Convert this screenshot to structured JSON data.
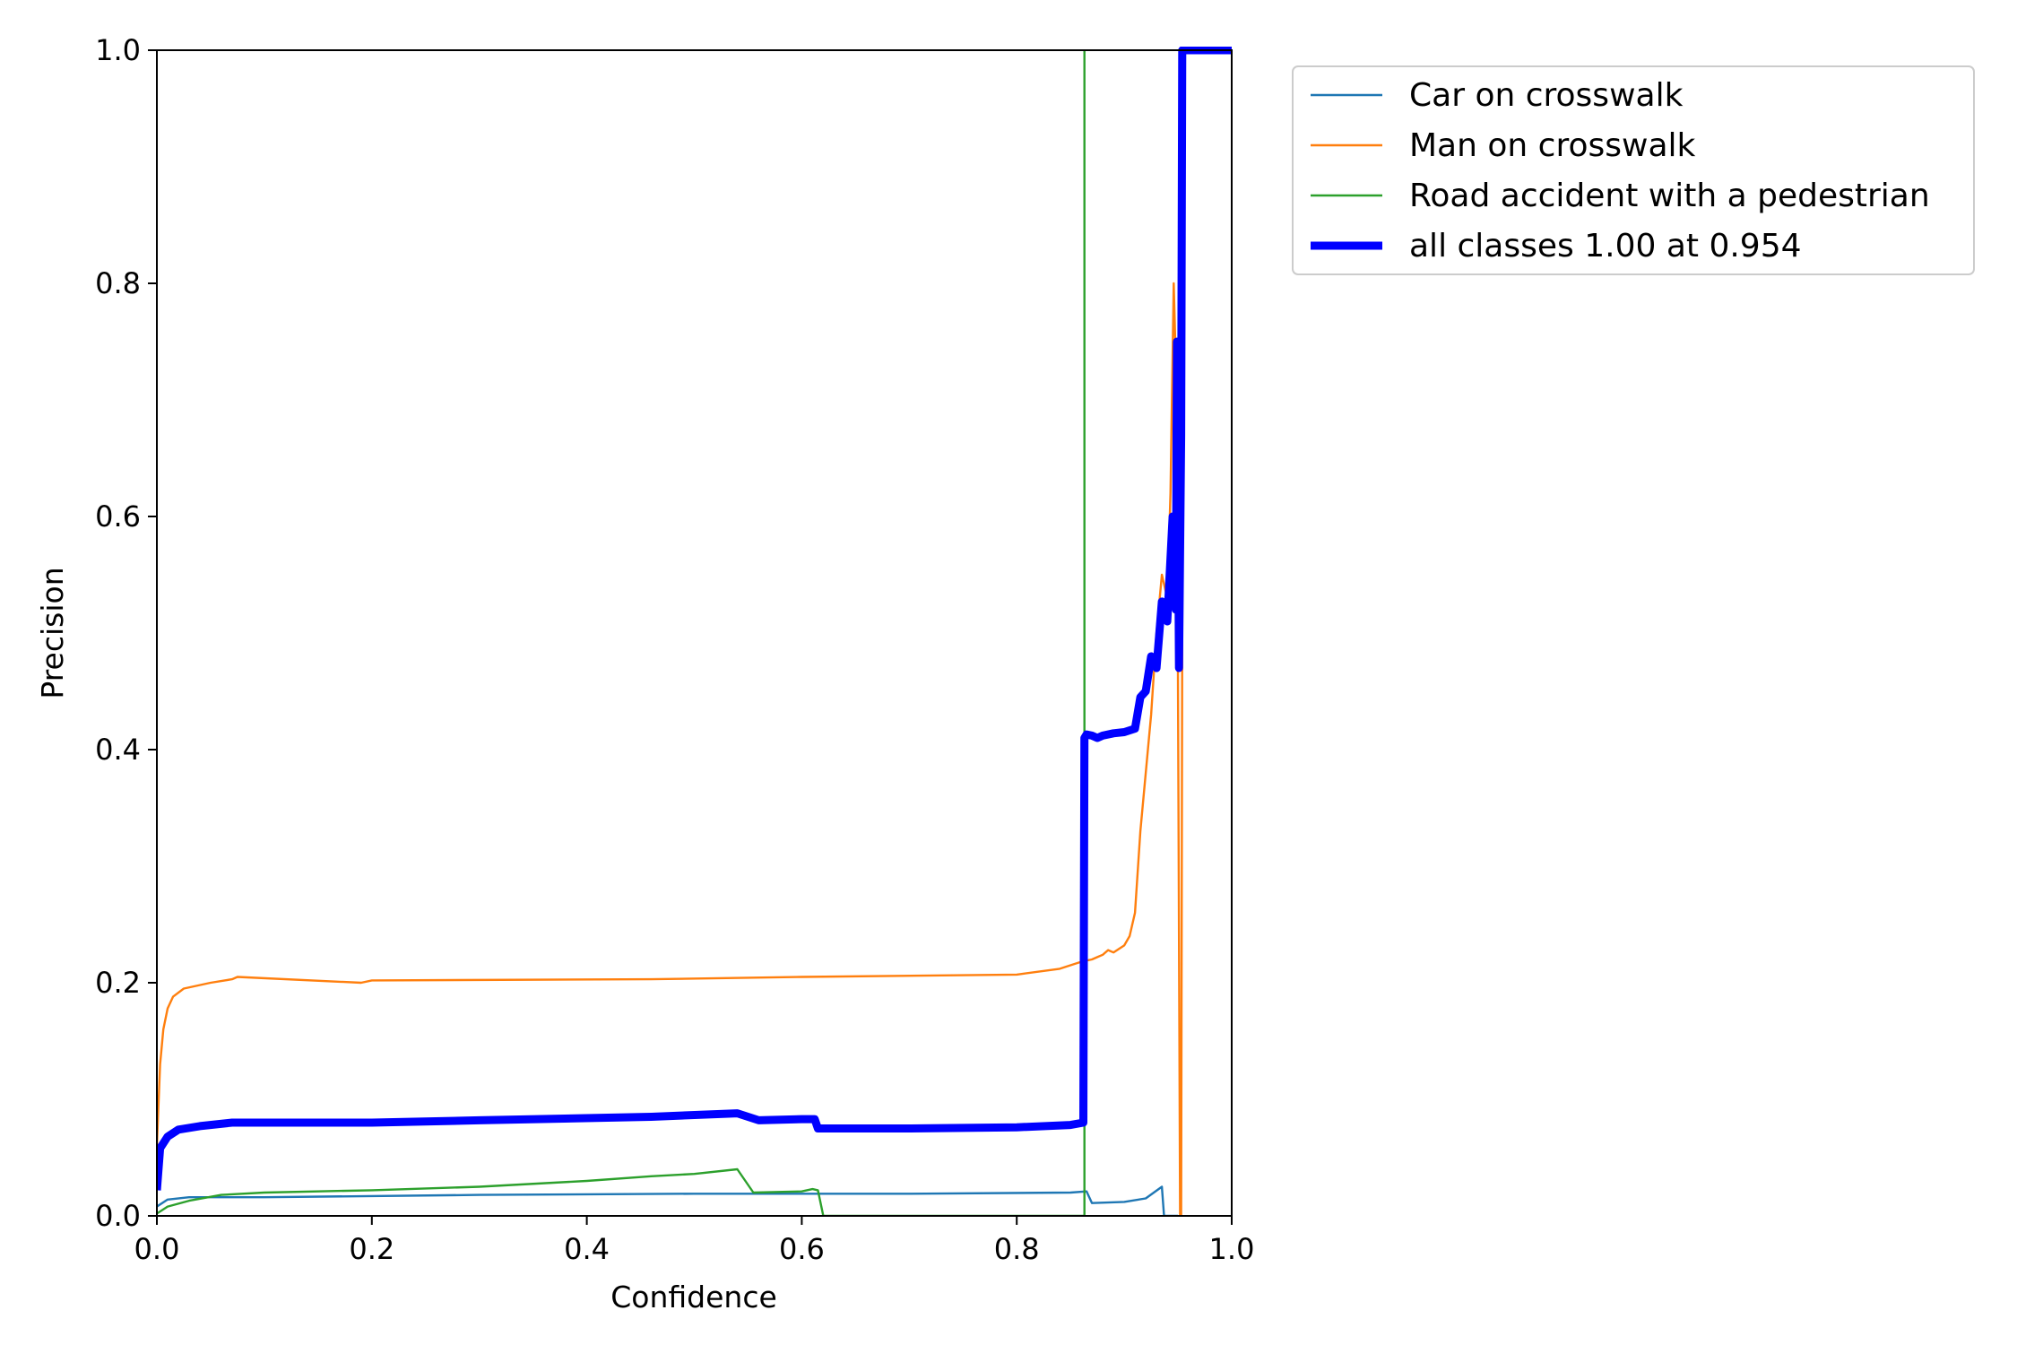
{
  "chart_data": {
    "type": "line",
    "title": "",
    "xlabel": "Confidence",
    "ylabel": "Precision",
    "xlim": [
      0.0,
      1.0
    ],
    "ylim": [
      0.0,
      1.0
    ],
    "x_ticks": [
      "0.0",
      "0.2",
      "0.4",
      "0.6",
      "0.8",
      "1.0"
    ],
    "y_ticks": [
      "0.0",
      "0.2",
      "0.4",
      "0.6",
      "0.8",
      "1.0"
    ],
    "grid": false,
    "legend_position": "outside top-right",
    "series": [
      {
        "name": "Car on crosswalk",
        "color": "#1f77b4",
        "width": "thin",
        "points": [
          [
            0.0,
            0.008
          ],
          [
            0.01,
            0.014
          ],
          [
            0.03,
            0.016
          ],
          [
            0.1,
            0.016
          ],
          [
            0.3,
            0.018
          ],
          [
            0.5,
            0.019
          ],
          [
            0.6,
            0.019
          ],
          [
            0.7,
            0.019
          ],
          [
            0.85,
            0.02
          ],
          [
            0.865,
            0.021
          ],
          [
            0.87,
            0.011
          ],
          [
            0.9,
            0.012
          ],
          [
            0.92,
            0.015
          ],
          [
            0.935,
            0.025
          ],
          [
            0.937,
            0.0
          ],
          [
            0.95,
            0.0
          ]
        ]
      },
      {
        "name": "Man on crosswalk",
        "color": "#ff7f0e",
        "width": "thin",
        "points": [
          [
            0.0,
            0.06
          ],
          [
            0.003,
            0.13
          ],
          [
            0.006,
            0.16
          ],
          [
            0.01,
            0.178
          ],
          [
            0.015,
            0.188
          ],
          [
            0.025,
            0.195
          ],
          [
            0.05,
            0.2
          ],
          [
            0.07,
            0.203
          ],
          [
            0.075,
            0.205
          ],
          [
            0.19,
            0.2
          ],
          [
            0.2,
            0.202
          ],
          [
            0.46,
            0.203
          ],
          [
            0.6,
            0.205
          ],
          [
            0.8,
            0.207
          ],
          [
            0.84,
            0.212
          ],
          [
            0.86,
            0.218
          ],
          [
            0.87,
            0.22
          ],
          [
            0.875,
            0.222
          ],
          [
            0.88,
            0.224
          ],
          [
            0.885,
            0.228
          ],
          [
            0.89,
            0.226
          ],
          [
            0.9,
            0.232
          ],
          [
            0.905,
            0.24
          ],
          [
            0.91,
            0.26
          ],
          [
            0.915,
            0.33
          ],
          [
            0.92,
            0.38
          ],
          [
            0.925,
            0.43
          ],
          [
            0.93,
            0.5
          ],
          [
            0.935,
            0.55
          ],
          [
            0.94,
            0.53
          ],
          [
            0.943,
            0.62
          ],
          [
            0.946,
            0.8
          ],
          [
            0.948,
            0.73
          ],
          [
            0.95,
            0.47
          ],
          [
            0.952,
            0.0
          ],
          [
            0.953,
            0.0
          ],
          [
            0.955,
            1.0
          ],
          [
            1.0,
            1.0
          ]
        ]
      },
      {
        "name": "Road accident with a pedestrian",
        "color": "#2ca02c",
        "width": "thin",
        "points": [
          [
            0.0,
            0.002
          ],
          [
            0.01,
            0.008
          ],
          [
            0.03,
            0.013
          ],
          [
            0.06,
            0.018
          ],
          [
            0.1,
            0.02
          ],
          [
            0.2,
            0.022
          ],
          [
            0.3,
            0.025
          ],
          [
            0.4,
            0.03
          ],
          [
            0.46,
            0.034
          ],
          [
            0.5,
            0.036
          ],
          [
            0.54,
            0.04
          ],
          [
            0.555,
            0.02
          ],
          [
            0.6,
            0.021
          ],
          [
            0.61,
            0.023
          ],
          [
            0.615,
            0.022
          ],
          [
            0.62,
            0.0
          ],
          [
            0.863,
            0.0
          ],
          [
            0.863,
            1.0
          ]
        ]
      },
      {
        "name": "all classes 1.00 at 0.954",
        "color": "#0000ff",
        "width": "thick",
        "points": [
          [
            0.0,
            0.022
          ],
          [
            0.003,
            0.058
          ],
          [
            0.01,
            0.068
          ],
          [
            0.02,
            0.074
          ],
          [
            0.04,
            0.077
          ],
          [
            0.07,
            0.08
          ],
          [
            0.1,
            0.08
          ],
          [
            0.2,
            0.08
          ],
          [
            0.3,
            0.082
          ],
          [
            0.46,
            0.085
          ],
          [
            0.54,
            0.088
          ],
          [
            0.56,
            0.082
          ],
          [
            0.6,
            0.083
          ],
          [
            0.612,
            0.083
          ],
          [
            0.615,
            0.075
          ],
          [
            0.7,
            0.075
          ],
          [
            0.8,
            0.076
          ],
          [
            0.85,
            0.078
          ],
          [
            0.862,
            0.08
          ],
          [
            0.863,
            0.41
          ],
          [
            0.865,
            0.413
          ],
          [
            0.87,
            0.412
          ],
          [
            0.875,
            0.41
          ],
          [
            0.88,
            0.412
          ],
          [
            0.89,
            0.414
          ],
          [
            0.9,
            0.415
          ],
          [
            0.91,
            0.418
          ],
          [
            0.915,
            0.445
          ],
          [
            0.92,
            0.45
          ],
          [
            0.925,
            0.48
          ],
          [
            0.93,
            0.47
          ],
          [
            0.935,
            0.527
          ],
          [
            0.94,
            0.51
          ],
          [
            0.945,
            0.6
          ],
          [
            0.948,
            0.52
          ],
          [
            0.949,
            0.75
          ],
          [
            0.951,
            0.47
          ],
          [
            0.953,
            0.67
          ],
          [
            0.954,
            1.0
          ],
          [
            1.0,
            1.0
          ]
        ]
      }
    ]
  }
}
